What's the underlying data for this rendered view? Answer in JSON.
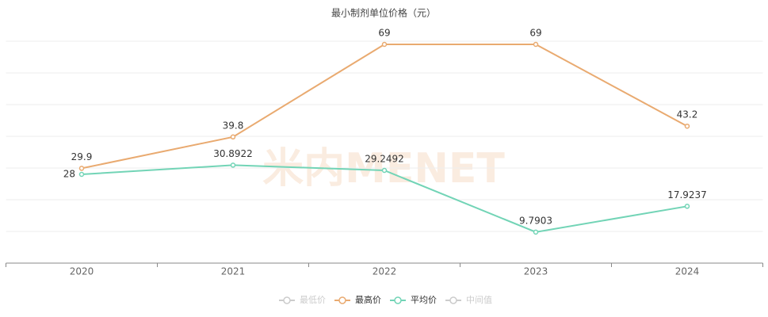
{
  "chart_data": {
    "type": "line",
    "title": "最小制剂单位价格（元）",
    "watermark": "米内MENET",
    "categories": [
      "2020",
      "2021",
      "2022",
      "2023",
      "2024"
    ],
    "series": [
      {
        "name": "最低价",
        "color": "#cccccc",
        "values": [
          null,
          null,
          null,
          null,
          null
        ]
      },
      {
        "name": "最高价",
        "color": "#e9aa70",
        "values": [
          29.9,
          39.8,
          69,
          69,
          43.2
        ]
      },
      {
        "name": "平均价",
        "color": "#72d4b6",
        "values": [
          28,
          30.8922,
          29.2492,
          9.7903,
          17.9237
        ]
      },
      {
        "name": "中间值",
        "color": "#cccccc",
        "values": [
          null,
          null,
          null,
          null,
          null
        ]
      }
    ],
    "ylim": [
      0,
      70
    ],
    "yticks": [
      0,
      10,
      20,
      30,
      40,
      50,
      60,
      70
    ],
    "grid": true,
    "legend": "bottom"
  }
}
